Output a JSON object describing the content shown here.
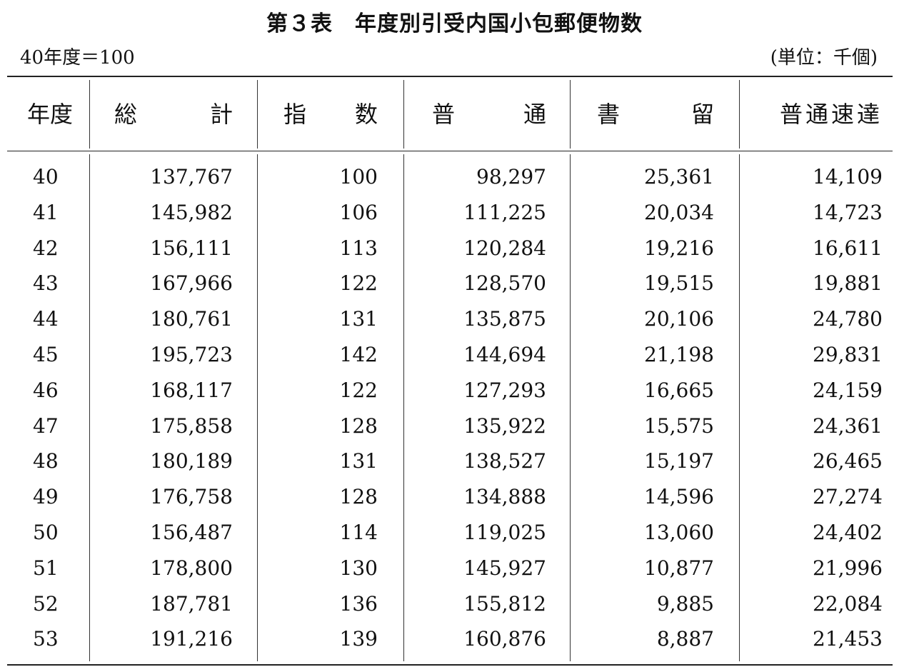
{
  "title": "第３表　年度別引受内国小包郵便物数",
  "base_note": "40年度＝100",
  "unit_note": "(単位：千個)",
  "headers": {
    "year": "年度",
    "total": [
      "総",
      "計"
    ],
    "index": [
      "指",
      "数"
    ],
    "normal": [
      "普",
      "通"
    ],
    "registered": [
      "書",
      "留"
    ],
    "normal_express": "普通速達"
  },
  "rows": [
    {
      "year": "40",
      "total": "137,767",
      "index": "100",
      "normal": "98,297",
      "registered": "25,361",
      "normal_express": "14,109"
    },
    {
      "year": "41",
      "total": "145,982",
      "index": "106",
      "normal": "111,225",
      "registered": "20,034",
      "normal_express": "14,723"
    },
    {
      "year": "42",
      "total": "156,111",
      "index": "113",
      "normal": "120,284",
      "registered": "19,216",
      "normal_express": "16,611"
    },
    {
      "year": "43",
      "total": "167,966",
      "index": "122",
      "normal": "128,570",
      "registered": "19,515",
      "normal_express": "19,881"
    },
    {
      "year": "44",
      "total": "180,761",
      "index": "131",
      "normal": "135,875",
      "registered": "20,106",
      "normal_express": "24,780"
    },
    {
      "year": "45",
      "total": "195,723",
      "index": "142",
      "normal": "144,694",
      "registered": "21,198",
      "normal_express": "29,831"
    },
    {
      "year": "46",
      "total": "168,117",
      "index": "122",
      "normal": "127,293",
      "registered": "16,665",
      "normal_express": "24,159"
    },
    {
      "year": "47",
      "total": "175,858",
      "index": "128",
      "normal": "135,922",
      "registered": "15,575",
      "normal_express": "24,361"
    },
    {
      "year": "48",
      "total": "180,189",
      "index": "131",
      "normal": "138,527",
      "registered": "15,197",
      "normal_express": "26,465"
    },
    {
      "year": "49",
      "total": "176,758",
      "index": "128",
      "normal": "134,888",
      "registered": "14,596",
      "normal_express": "27,274"
    },
    {
      "year": "50",
      "total": "156,487",
      "index": "114",
      "normal": "119,025",
      "registered": "13,060",
      "normal_express": "24,402"
    },
    {
      "year": "51",
      "total": "178,800",
      "index": "130",
      "normal": "145,927",
      "registered": "10,877",
      "normal_express": "21,996"
    },
    {
      "year": "52",
      "total": "187,781",
      "index": "136",
      "normal": "155,812",
      "registered": "9,885",
      "normal_express": "22,084"
    },
    {
      "year": "53",
      "total": "191,216",
      "index": "139",
      "normal": "160,876",
      "registered": "8,887",
      "normal_express": "21,453"
    }
  ]
}
